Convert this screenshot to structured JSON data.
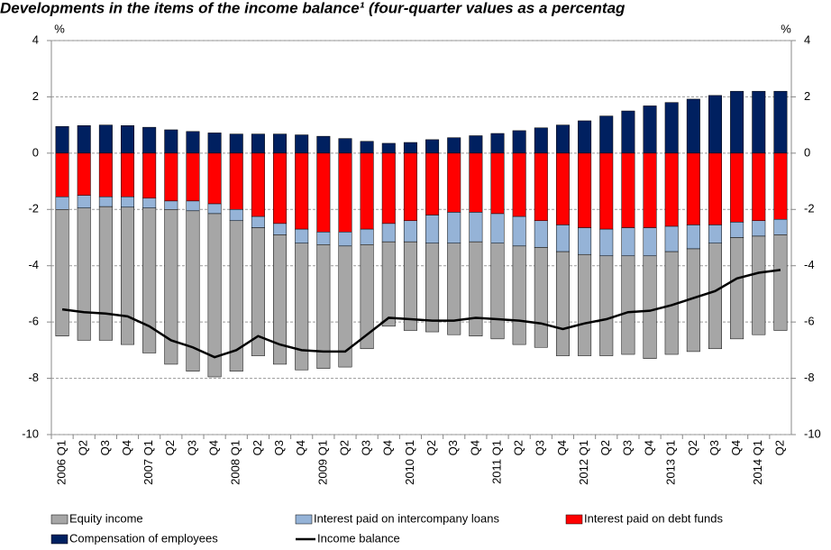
{
  "chart_data": {
    "type": "stacked_bar_line",
    "title": "Developments in the items of the income balance¹ (four-quarter values as a percentag",
    "ylabel": "%",
    "y2label": "%",
    "categories": [
      "2006 Q1",
      "Q2",
      "Q3",
      "Q4",
      "2007 Q1",
      "Q2",
      "Q3",
      "Q4",
      "2008 Q1",
      "Q2",
      "Q3",
      "Q4",
      "2009 Q1",
      "Q2",
      "Q3",
      "Q4",
      "2010 Q1",
      "Q2",
      "Q3",
      "Q4",
      "2011 Q1",
      "Q2",
      "Q3",
      "Q4",
      "2012 Q1",
      "Q2",
      "Q3",
      "Q4",
      "2013 Q1",
      "Q2",
      "Q3",
      "Q4",
      "2014 Q1",
      "Q2"
    ],
    "series": [
      {
        "name": "Equity income",
        "type": "bar",
        "color": "#a6a6a6",
        "values": [
          -4.5,
          -4.7,
          -4.75,
          -4.88,
          -5.15,
          -5.5,
          -5.7,
          -5.8,
          -5.35,
          -4.55,
          -4.6,
          -4.5,
          -4.4,
          -4.3,
          -3.7,
          -3.0,
          -3.15,
          -3.15,
          -3.25,
          -3.35,
          -3.4,
          -3.5,
          -3.55,
          -3.7,
          -3.6,
          -3.55,
          -3.5,
          -3.65,
          -3.65,
          -3.65,
          -3.75,
          -3.6,
          -3.5,
          -3.4
        ]
      },
      {
        "name": "Interest paid on intercompany loans",
        "type": "bar",
        "color": "#95b3d7",
        "values": [
          -0.45,
          -0.45,
          -0.35,
          -0.37,
          -0.35,
          -0.3,
          -0.35,
          -0.35,
          -0.4,
          -0.4,
          -0.4,
          -0.5,
          -0.45,
          -0.5,
          -0.55,
          -0.65,
          -0.75,
          -1.0,
          -1.1,
          -1.05,
          -1.05,
          -1.05,
          -0.95,
          -0.95,
          -0.95,
          -0.95,
          -1.0,
          -1.0,
          -0.9,
          -0.85,
          -0.65,
          -0.55,
          -0.55,
          -0.55
        ]
      },
      {
        "name": "Interest paid on debt funds",
        "type": "bar",
        "color": "#ff0000",
        "values": [
          -1.55,
          -1.5,
          -1.55,
          -1.55,
          -1.6,
          -1.7,
          -1.7,
          -1.8,
          -2.0,
          -2.25,
          -2.5,
          -2.7,
          -2.8,
          -2.8,
          -2.7,
          -2.5,
          -2.4,
          -2.2,
          -2.1,
          -2.1,
          -2.15,
          -2.25,
          -2.4,
          -2.55,
          -2.65,
          -2.7,
          -2.65,
          -2.65,
          -2.6,
          -2.55,
          -2.55,
          -2.45,
          -2.4,
          -2.35
        ]
      },
      {
        "name": "Compensation of employees",
        "type": "bar",
        "color": "#002060",
        "values": [
          0.95,
          0.98,
          1.0,
          0.98,
          0.92,
          0.83,
          0.77,
          0.72,
          0.68,
          0.68,
          0.68,
          0.65,
          0.6,
          0.52,
          0.42,
          0.35,
          0.38,
          0.48,
          0.55,
          0.62,
          0.7,
          0.8,
          0.9,
          1.0,
          1.15,
          1.32,
          1.5,
          1.68,
          1.8,
          1.92,
          2.05,
          2.2,
          2.2,
          2.2
        ]
      },
      {
        "name": "Income balance",
        "type": "line",
        "color": "#000000",
        "values": [
          -5.55,
          -5.65,
          -5.7,
          -5.8,
          -6.15,
          -6.65,
          -6.9,
          -7.25,
          -7.0,
          -6.5,
          -6.8,
          -7.0,
          -7.05,
          -7.05,
          -6.45,
          -5.85,
          -5.9,
          -5.95,
          -5.95,
          -5.85,
          -5.9,
          -5.95,
          -6.05,
          -6.25,
          -6.05,
          -5.9,
          -5.65,
          -5.6,
          -5.4,
          -5.15,
          -4.9,
          -4.45,
          -4.25,
          -4.15
        ]
      }
    ],
    "ylim": [
      -10,
      4
    ],
    "yticks": [
      4,
      2,
      0,
      -2,
      -4,
      -6,
      -8,
      -10
    ],
    "y2lim": [
      -10,
      4
    ],
    "y2ticks": [
      4,
      2,
      0,
      -2,
      -4,
      -6,
      -8,
      -10
    ],
    "grid": true
  }
}
